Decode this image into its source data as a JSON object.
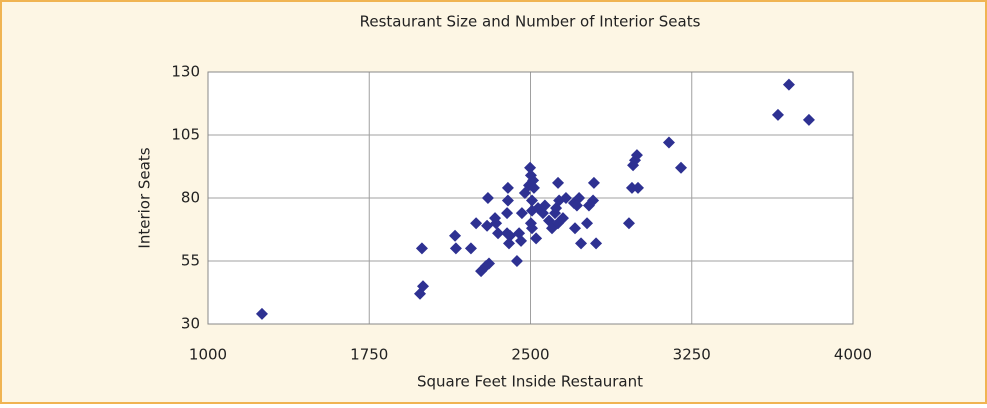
{
  "chart_data": {
    "type": "scatter",
    "title": "Restaurant Size and Number of Interior Seats",
    "xlabel": "Square Feet Inside Restaurant",
    "ylabel": "Interior Seats",
    "color": "#2e3192",
    "grid": true,
    "xlim": [
      1000,
      4000
    ],
    "xticks": [
      1000,
      1750,
      2500,
      3250,
      4000
    ],
    "ylim": [
      30,
      130
    ],
    "yticks": [
      30,
      55,
      80,
      105,
      130
    ],
    "x": [
      1251,
      1986,
      2000,
      1995,
      2149,
      2153,
      2223,
      2247,
      2270,
      2293,
      2307,
      2298,
      2302,
      2335,
      2340,
      2349,
      2391,
      2391,
      2395,
      2400,
      2395,
      2405,
      2437,
      2447,
      2456,
      2460,
      2474,
      2493,
      2498,
      2502,
      2507,
      2507,
      2502,
      2507,
      2526,
      2516,
      2512,
      2535,
      2558,
      2567,
      2586,
      2600,
      2614,
      2619,
      2628,
      2628,
      2633,
      2651,
      2665,
      2702,
      2707,
      2726,
      2716,
      2735,
      2763,
      2772,
      2791,
      2795,
      2805,
      2958,
      2972,
      2977,
      2986,
      2995,
      3000,
      3144,
      3200,
      3651,
      3702,
      3795
    ],
    "values": [
      34,
      42,
      45,
      60,
      65,
      60,
      60,
      70,
      51,
      53,
      54,
      69,
      80,
      72,
      70,
      66,
      66,
      74,
      84,
      62,
      79,
      65,
      55,
      66,
      63,
      74,
      82,
      85,
      92,
      89,
      79,
      75,
      70,
      68,
      64,
      84,
      87,
      76,
      74,
      77,
      71,
      68,
      74,
      76,
      70,
      86,
      79,
      72,
      80,
      78,
      68,
      80,
      77,
      62,
      70,
      77,
      79,
      86,
      62,
      70,
      84,
      93,
      95,
      97,
      84,
      102,
      92,
      113,
      125,
      111
    ]
  }
}
